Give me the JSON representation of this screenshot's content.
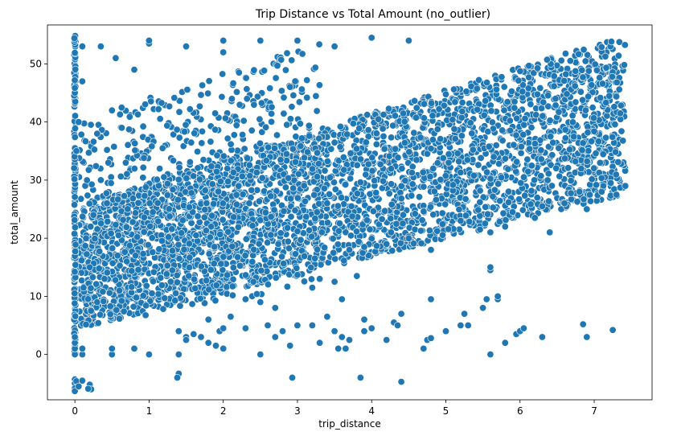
{
  "chart_data": {
    "type": "scatter",
    "title": "Trip Distance vs Total Amount (no_outlier)",
    "xlabel": "trip_distance",
    "ylabel": "total_amount",
    "xlim": [
      -0.37,
      7.78
    ],
    "ylim": [
      -7.8,
      56.7
    ],
    "xticks": [
      0,
      1,
      2,
      3,
      4,
      5,
      6,
      7
    ],
    "yticks": [
      0,
      10,
      20,
      30,
      40,
      50
    ],
    "grid": false,
    "marker_color": "#1f77b4",
    "marker_edge_color": "#ffffff",
    "bands": [
      {
        "x0": 0.05,
        "x1": 7.42,
        "y0_low": 4.5,
        "y0_high": 26.0,
        "y1_low": 27.5,
        "y1_high": 55.0,
        "count": 3400
      },
      {
        "x0": 0.05,
        "x1": 3.3,
        "y0_low": 4.5,
        "y0_high": 40.0,
        "y1_low": 12.0,
        "y1_high": 54.0,
        "count": 700
      }
    ],
    "x_zero_column": {
      "x": 0.0,
      "y_min": 0.0,
      "y_max": 55.0,
      "count": 160
    },
    "points": [
      [
        0.0,
        -4.3
      ],
      [
        0.0,
        -5.0
      ],
      [
        0.0,
        -5.8
      ],
      [
        0.0,
        -6.3
      ],
      [
        0.02,
        -4.6
      ],
      [
        0.05,
        -5.5
      ],
      [
        0.1,
        -4.5
      ],
      [
        0.2,
        -5.2
      ],
      [
        0.22,
        -6.0
      ],
      [
        0.18,
        -5.9
      ],
      [
        0.0,
        0.0
      ],
      [
        0.0,
        1.0
      ],
      [
        0.0,
        2.0
      ],
      [
        0.0,
        3.0
      ],
      [
        0.1,
        0.0
      ],
      [
        0.1,
        1.0
      ],
      [
        0.5,
        0.0
      ],
      [
        0.5,
        1.0
      ],
      [
        0.8,
        1.0
      ],
      [
        1.0,
        0.0
      ],
      [
        1.4,
        -3.3
      ],
      [
        1.38,
        -4.0
      ],
      [
        1.4,
        0.0
      ],
      [
        1.4,
        4.0
      ],
      [
        1.5,
        3.0
      ],
      [
        1.5,
        2.5
      ],
      [
        1.6,
        3.5
      ],
      [
        1.7,
        3.0
      ],
      [
        1.8,
        2.0
      ],
      [
        1.9,
        1.5
      ],
      [
        2.0,
        1.0
      ],
      [
        1.95,
        4.0
      ],
      [
        2.0,
        4.5
      ],
      [
        2.3,
        4.5
      ],
      [
        2.5,
        0.0
      ],
      [
        2.6,
        5.0
      ],
      [
        2.7,
        3.0
      ],
      [
        2.8,
        4.0
      ],
      [
        2.9,
        1.5
      ],
      [
        2.93,
        -4.0
      ],
      [
        3.0,
        5.0
      ],
      [
        3.2,
        5.0
      ],
      [
        3.3,
        2.0
      ],
      [
        3.4,
        6.5
      ],
      [
        3.5,
        4.0
      ],
      [
        3.55,
        1.0
      ],
      [
        3.6,
        3.0
      ],
      [
        3.65,
        1.0
      ],
      [
        3.7,
        2.5
      ],
      [
        3.85,
        -4.0
      ],
      [
        3.9,
        4.0
      ],
      [
        3.9,
        6.0
      ],
      [
        4.0,
        4.5
      ],
      [
        4.2,
        2.5
      ],
      [
        4.3,
        5.5
      ],
      [
        4.35,
        5.0
      ],
      [
        4.4,
        -4.7
      ],
      [
        4.4,
        7.0
      ],
      [
        4.7,
        1.0
      ],
      [
        4.75,
        2.5
      ],
      [
        4.8,
        2.8
      ],
      [
        4.8,
        9.5
      ],
      [
        5.0,
        4.0
      ],
      [
        5.2,
        5.0
      ],
      [
        5.25,
        7.0
      ],
      [
        5.3,
        5.0
      ],
      [
        5.5,
        8.0
      ],
      [
        5.55,
        9.5
      ],
      [
        5.6,
        0.0
      ],
      [
        5.6,
        14.5
      ],
      [
        5.6,
        15.0
      ],
      [
        5.7,
        9.5
      ],
      [
        5.7,
        10.0
      ],
      [
        5.8,
        2.0
      ],
      [
        5.95,
        3.5
      ],
      [
        6.0,
        4.0
      ],
      [
        6.05,
        4.5
      ],
      [
        6.3,
        3.0
      ],
      [
        6.85,
        5.2
      ],
      [
        6.9,
        3.0
      ],
      [
        7.25,
        4.2
      ],
      [
        0.1,
        53.0
      ],
      [
        0.35,
        53.0
      ],
      [
        0.3,
        38.0
      ],
      [
        0.5,
        42.0
      ],
      [
        0.8,
        49.0
      ],
      [
        0.55,
        51.0
      ],
      [
        0.1,
        47.0
      ],
      [
        0.05,
        40.0
      ],
      [
        0.02,
        35.0
      ],
      [
        1.0,
        53.5
      ],
      [
        1.0,
        54.0
      ],
      [
        1.5,
        53.0
      ],
      [
        2.0,
        54.0
      ],
      [
        2.5,
        54.0
      ],
      [
        2.0,
        52.0
      ],
      [
        3.0,
        54.0
      ],
      [
        3.5,
        53.0
      ],
      [
        4.0,
        54.5
      ],
      [
        4.5,
        54.0
      ],
      [
        0.3,
        9.0
      ],
      [
        0.4,
        13.0
      ],
      [
        0.6,
        11.0
      ],
      [
        0.7,
        16.0
      ],
      [
        0.2,
        15.0
      ],
      [
        0.15,
        20.0
      ],
      [
        0.25,
        24.0
      ],
      [
        0.35,
        30.0
      ],
      [
        0.45,
        33.0
      ],
      [
        3.3,
        13.0
      ],
      [
        3.5,
        12.5
      ],
      [
        3.8,
        13.5
      ],
      [
        3.6,
        9.5
      ],
      [
        3.2,
        11.5
      ],
      [
        2.7,
        8.0
      ],
      [
        2.5,
        9.0
      ],
      [
        2.3,
        9.5
      ],
      [
        2.1,
        6.5
      ],
      [
        1.8,
        6.0
      ],
      [
        5.2,
        23.0
      ],
      [
        5.6,
        21.0
      ],
      [
        5.9,
        24.5
      ],
      [
        6.4,
        21.0
      ],
      [
        6.6,
        26.0
      ],
      [
        6.9,
        25.0
      ],
      [
        7.1,
        28.0
      ],
      [
        7.3,
        27.5
      ],
      [
        7.42,
        29.0
      ],
      [
        6.3,
        25.5
      ],
      [
        6.8,
        28.0
      ],
      [
        6.2,
        23.5
      ],
      [
        5.8,
        22.0
      ],
      [
        4.8,
        18.0
      ],
      [
        4.5,
        20.0
      ],
      [
        4.2,
        19.0
      ],
      [
        3.9,
        18.5
      ],
      [
        3.7,
        18.0
      ]
    ]
  }
}
